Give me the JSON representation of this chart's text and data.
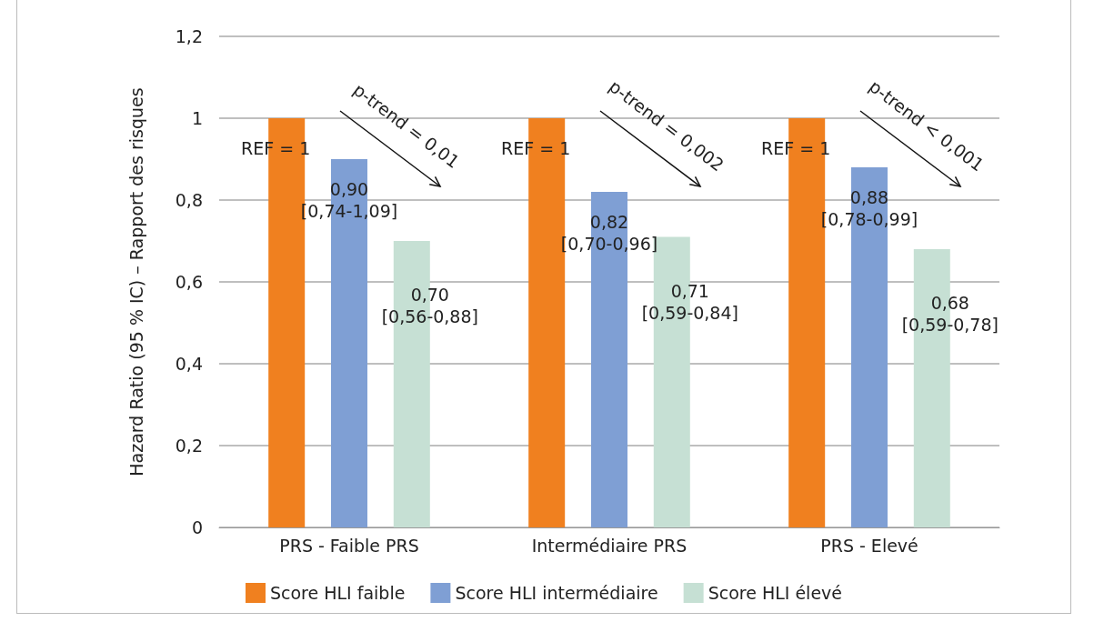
{
  "chart_data": {
    "type": "bar",
    "ylabel": "Hazard Ratio (95 % IC) – Rapport des risques",
    "categories": [
      "PRS - Faible PRS",
      "Intermédiaire PRS",
      "PRS - Elevé"
    ],
    "series": [
      {
        "name": "Score HLI faible",
        "color": "#f0801f",
        "values": [
          1,
          1,
          1
        ],
        "value_labels": [
          "REF = 1",
          "REF = 1",
          "REF = 1"
        ]
      },
      {
        "name": "Score HLI intermédiaire",
        "color": "#7f9fd4",
        "values": [
          0.9,
          0.82,
          0.88
        ],
        "value_labels": [
          "0,90\n[0,74-1,09]",
          "0,82\n[0,70-0,96]",
          "0,88\n[0,78-0,99]"
        ]
      },
      {
        "name": "Score HLI élevé",
        "color": "#c6e0d4",
        "values": [
          0.7,
          0.71,
          0.68
        ],
        "value_labels": [
          "0,70\n[0,56-0,88]",
          "0,71\n[0,59-0,84]",
          "0,68\n[0,59-0,78]"
        ]
      }
    ],
    "ylim": [
      0,
      1.2
    ],
    "yticks": [
      {
        "value": 0,
        "label": "0"
      },
      {
        "value": 0.2,
        "label": "0,2"
      },
      {
        "value": 0.4,
        "label": "0,4"
      },
      {
        "value": 0.6,
        "label": "0,6"
      },
      {
        "value": 0.8,
        "label": "0,8"
      },
      {
        "value": 1,
        "label": "1"
      },
      {
        "value": 1.2,
        "label": "1,2"
      }
    ],
    "grid": "y",
    "legend": "bottom",
    "annotations": [
      "p-trend = 0,01",
      "p-trend = 0,002",
      "p-trend < 0,001"
    ]
  }
}
